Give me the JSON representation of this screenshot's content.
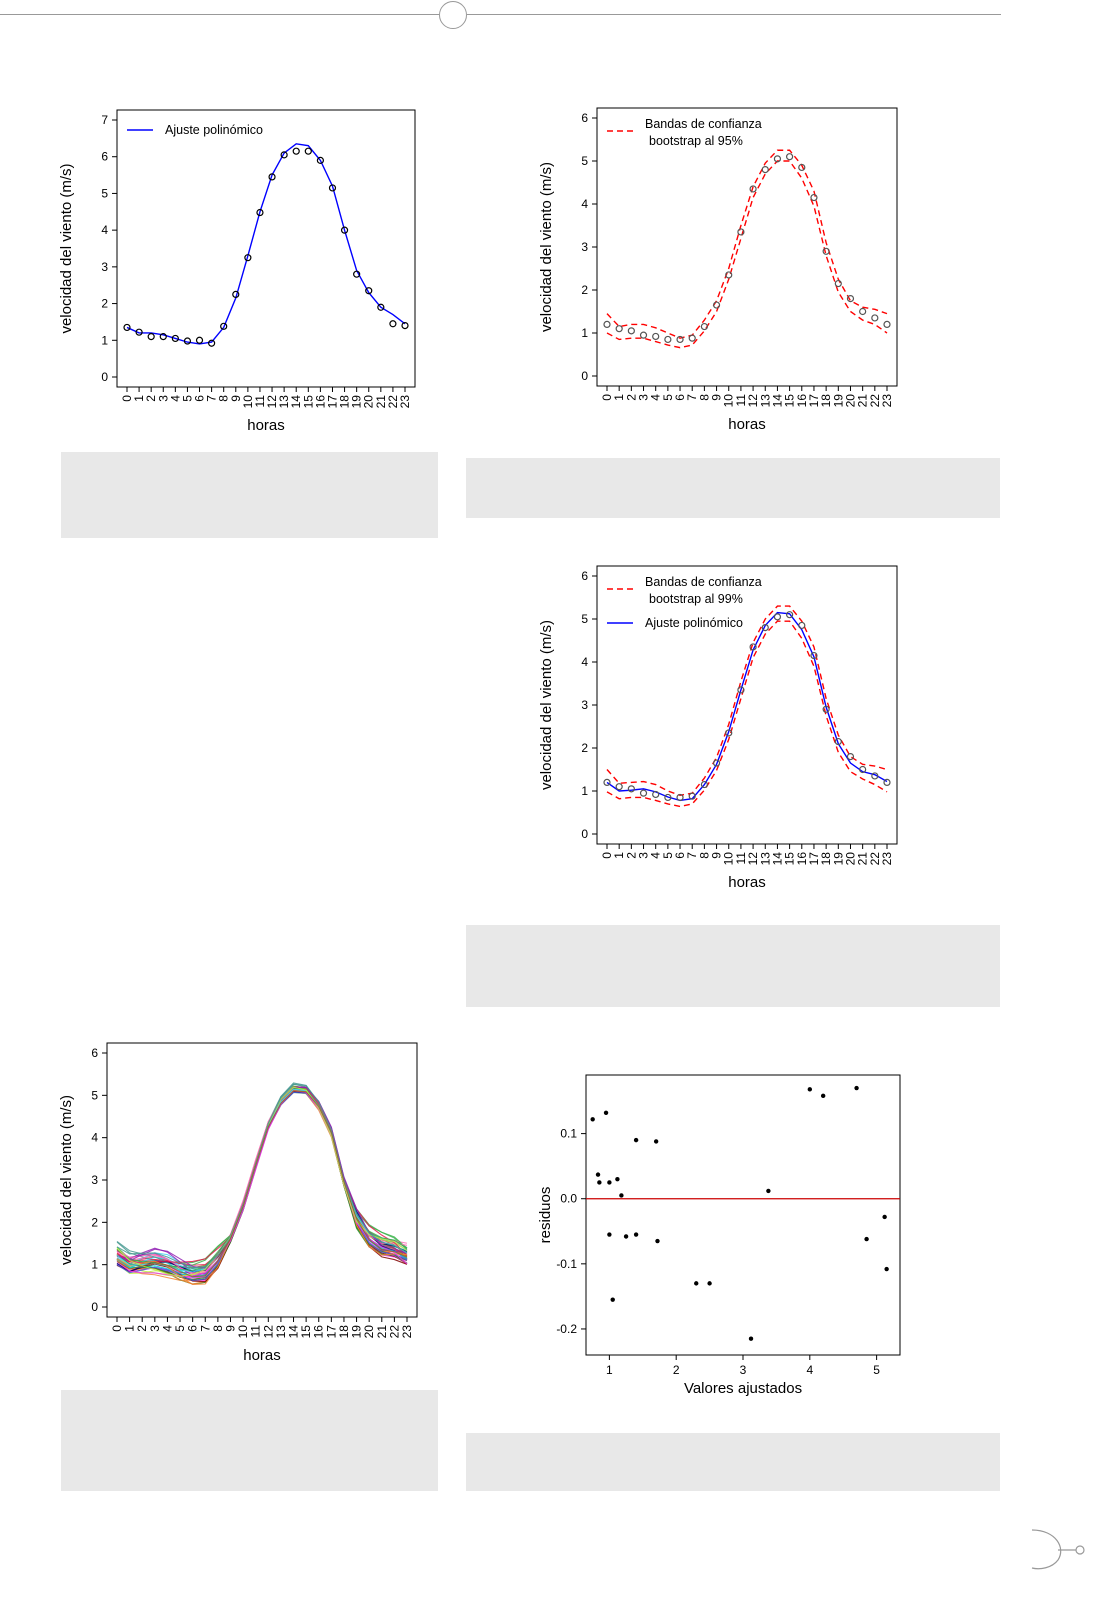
{
  "chart_data": [
    {
      "type": "line",
      "ylabel": "velocidad del viento (m/s)",
      "xlabel": "horas",
      "x": [
        0,
        1,
        2,
        3,
        4,
        5,
        6,
        7,
        8,
        9,
        10,
        11,
        12,
        13,
        14,
        15,
        16,
        17,
        18,
        19,
        20,
        21,
        22,
        23
      ],
      "ylim": [
        0,
        7
      ],
      "yticks": [
        0,
        1,
        2,
        3,
        4,
        5,
        6,
        7
      ],
      "legend": [
        "Ajuste polinómico"
      ],
      "legend_position": "top-left",
      "series": [
        {
          "name": "Ajuste polinómico",
          "color": "#0000ff",
          "values": [
            1.35,
            1.2,
            1.2,
            1.15,
            1.05,
            0.95,
            0.9,
            0.95,
            1.35,
            2.15,
            3.3,
            4.5,
            5.5,
            6.1,
            6.35,
            6.3,
            5.9,
            5.2,
            4.0,
            2.9,
            2.3,
            1.9,
            1.7,
            1.45
          ]
        },
        {
          "points": true,
          "color": "#000000",
          "values": [
            1.35,
            1.22,
            1.1,
            1.1,
            1.05,
            0.98,
            1.0,
            0.92,
            1.38,
            2.25,
            3.25,
            4.48,
            5.45,
            6.05,
            6.15,
            6.15,
            5.9,
            5.15,
            4.0,
            2.8,
            2.35,
            1.9,
            1.45,
            1.4
          ]
        }
      ]
    },
    {
      "type": "line",
      "ylabel": "velocidad del viento (m/s)",
      "xlabel": "horas",
      "x": [
        0,
        1,
        2,
        3,
        4,
        5,
        6,
        7,
        8,
        9,
        10,
        11,
        12,
        13,
        14,
        15,
        16,
        17,
        18,
        19,
        20,
        21,
        22,
        23
      ],
      "ylim": [
        0,
        6
      ],
      "yticks": [
        0,
        1,
        2,
        3,
        4,
        5,
        6
      ],
      "legend": [
        "Bandas de confianza",
        "bootstrap al 95%"
      ],
      "legend_position": "top-left",
      "series": [
        {
          "color": "#ff0000",
          "dashed": true,
          "values": [
            1.45,
            1.15,
            1.2,
            1.2,
            1.12,
            1.0,
            0.88,
            0.95,
            1.3,
            1.75,
            2.5,
            3.5,
            4.4,
            4.95,
            5.25,
            5.25,
            4.9,
            4.3,
            3.1,
            2.25,
            1.75,
            1.6,
            1.55,
            1.45
          ]
        },
        {
          "color": "#ff0000",
          "dashed": true,
          "values": [
            1.0,
            0.85,
            0.88,
            0.88,
            0.8,
            0.72,
            0.66,
            0.72,
            1.05,
            1.5,
            2.25,
            3.2,
            4.15,
            4.7,
            5.0,
            5.0,
            4.6,
            3.95,
            2.8,
            1.95,
            1.5,
            1.3,
            1.2,
            1.0
          ]
        },
        {
          "points": true,
          "color": "#555555",
          "values": [
            1.2,
            1.1,
            1.05,
            0.95,
            0.92,
            0.85,
            0.85,
            0.88,
            1.15,
            1.65,
            2.35,
            3.35,
            4.35,
            4.8,
            5.05,
            5.1,
            4.85,
            4.15,
            2.9,
            2.15,
            1.8,
            1.5,
            1.35,
            1.2
          ]
        }
      ]
    },
    {
      "type": "line",
      "ylabel": "velocidad del viento (m/s)",
      "xlabel": "horas",
      "x": [
        0,
        1,
        2,
        3,
        4,
        5,
        6,
        7,
        8,
        9,
        10,
        11,
        12,
        13,
        14,
        15,
        16,
        17,
        18,
        19,
        20,
        21,
        22,
        23
      ],
      "ylim": [
        0,
        6
      ],
      "yticks": [
        0,
        1,
        2,
        3,
        4,
        5,
        6
      ],
      "legend": [
        "Bandas de confianza",
        "bootstrap al 99%",
        "Ajuste polinómico"
      ],
      "legend_position": "top-left",
      "series": [
        {
          "color": "#ff0000",
          "dashed": true,
          "values": [
            1.5,
            1.18,
            1.2,
            1.22,
            1.15,
            1.0,
            0.9,
            0.95,
            1.3,
            1.78,
            2.55,
            3.55,
            4.45,
            5.0,
            5.3,
            5.3,
            4.95,
            4.35,
            3.15,
            2.3,
            1.8,
            1.62,
            1.58,
            1.5
          ]
        },
        {
          "color": "#ff0000",
          "dashed": true,
          "values": [
            0.98,
            0.82,
            0.85,
            0.85,
            0.78,
            0.7,
            0.64,
            0.7,
            1.02,
            1.48,
            2.2,
            3.15,
            4.1,
            4.65,
            4.95,
            4.95,
            4.55,
            3.9,
            2.75,
            1.9,
            1.45,
            1.28,
            1.15,
            0.98
          ]
        },
        {
          "name": "Ajuste polinómico",
          "color": "#0000ff",
          "values": [
            1.2,
            1.0,
            1.02,
            1.05,
            0.98,
            0.86,
            0.78,
            0.82,
            1.15,
            1.62,
            2.38,
            3.35,
            4.28,
            4.85,
            5.15,
            5.12,
            4.75,
            4.12,
            2.95,
            2.1,
            1.65,
            1.45,
            1.38,
            1.22
          ]
        },
        {
          "points": true,
          "color": "#555555",
          "values": [
            1.2,
            1.1,
            1.05,
            0.95,
            0.92,
            0.85,
            0.85,
            0.88,
            1.15,
            1.65,
            2.35,
            3.35,
            4.35,
            4.8,
            5.05,
            5.1,
            4.85,
            4.15,
            2.9,
            2.15,
            1.8,
            1.5,
            1.35,
            1.2
          ]
        }
      ]
    },
    {
      "type": "line",
      "ylabel": "velocidad del viento (m/s)",
      "xlabel": "horas",
      "x": [
        0,
        1,
        2,
        3,
        4,
        5,
        6,
        7,
        8,
        9,
        10,
        11,
        12,
        13,
        14,
        15,
        16,
        17,
        18,
        19,
        20,
        21,
        22,
        23
      ],
      "ylim": [
        0,
        6
      ],
      "yticks": [
        0,
        1,
        2,
        3,
        4,
        5,
        6
      ],
      "mean": [
        1.2,
        1.0,
        1.02,
        1.05,
        0.98,
        0.86,
        0.78,
        0.82,
        1.15,
        1.62,
        2.38,
        3.35,
        4.28,
        4.85,
        5.15,
        5.12,
        4.75,
        4.12,
        2.95,
        2.1,
        1.65,
        1.45,
        1.38,
        1.22
      ],
      "bootstrap_curves": 40,
      "colors": [
        "#e6194b",
        "#3cb44b",
        "#4363d8",
        "#f58231",
        "#911eb4",
        "#42d4f4",
        "#f032e6",
        "#bfef45",
        "#469990",
        "#9A6324",
        "#800000",
        "#000075",
        "#ff69b4",
        "#00ced1",
        "#228b22"
      ]
    },
    {
      "type": "scatter",
      "ylabel": "residuos",
      "xlabel": "Valores ajustados",
      "xlim": [
        0.65,
        5.35
      ],
      "ylim": [
        -0.24,
        0.19
      ],
      "xticks": [
        1,
        2,
        3,
        4,
        5
      ],
      "yticks": [
        0.1,
        0.0,
        -0.1,
        -0.2
      ],
      "ytick_labels": [
        "0.1",
        "0.0",
        "-0.1",
        "-0.2"
      ],
      "hline": {
        "y": 0,
        "color": "#cc0000"
      },
      "points": [
        [
          0.75,
          0.122
        ],
        [
          0.83,
          0.037
        ],
        [
          0.85,
          0.025
        ],
        [
          0.95,
          0.132
        ],
        [
          1.0,
          0.025
        ],
        [
          1.0,
          -0.055
        ],
        [
          1.05,
          -0.155
        ],
        [
          1.12,
          0.03
        ],
        [
          1.18,
          0.005
        ],
        [
          1.25,
          -0.058
        ],
        [
          1.4,
          0.09
        ],
        [
          1.4,
          -0.055
        ],
        [
          1.7,
          0.088
        ],
        [
          1.72,
          -0.065
        ],
        [
          2.3,
          -0.13
        ],
        [
          2.5,
          -0.13
        ],
        [
          3.12,
          -0.215
        ],
        [
          3.38,
          0.012
        ],
        [
          4.0,
          0.168
        ],
        [
          4.2,
          0.158
        ],
        [
          4.7,
          0.17
        ],
        [
          4.85,
          -0.062
        ],
        [
          5.12,
          -0.028
        ],
        [
          5.15,
          -0.108
        ]
      ]
    }
  ]
}
